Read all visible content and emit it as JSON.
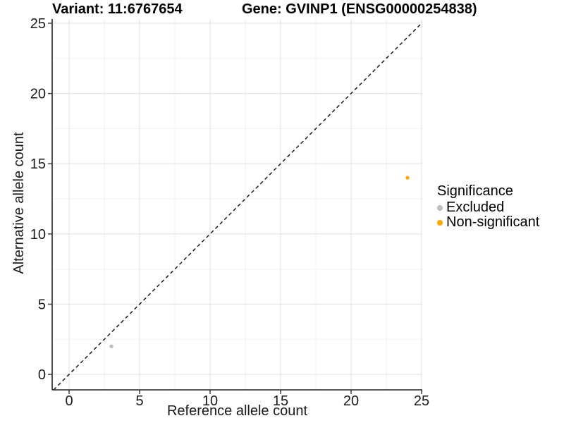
{
  "header": {
    "variant_title": "Variant: 11:6767654",
    "gene_title": "Gene: GVINP1 (ENSG00000254838)"
  },
  "legend": {
    "title": "Significance",
    "items": [
      {
        "label": "Excluded",
        "color": "#BDBDBD"
      },
      {
        "label": "Non-significant",
        "color": "#FFA500"
      }
    ]
  },
  "chart_data": {
    "type": "scatter",
    "title": "Variant: 11:6767654   Gene: GVINP1 (ENSG00000254838)",
    "xlabel": "Reference allele count",
    "ylabel": "Alternative allele count",
    "xlim": [
      -1.2,
      25.05
    ],
    "ylim": [
      -1.1,
      25.3
    ],
    "x_ticks": [
      0,
      5,
      10,
      15,
      20,
      25
    ],
    "y_ticks": [
      0,
      5,
      10,
      15,
      20,
      25
    ],
    "minor_ticks": [
      2.5,
      7.5,
      12.5,
      17.5,
      22.5
    ],
    "grid": true,
    "legend_position": "right",
    "identity_line": {
      "slope": 1,
      "intercept": 0,
      "style": "dashed",
      "color": "#1a1a1a"
    },
    "series": [
      {
        "name": "Excluded",
        "color": "#BDBDBD",
        "points": [
          [
            3,
            2
          ]
        ]
      },
      {
        "name": "Non-significant",
        "color": "#FFA500",
        "points": [
          [
            24,
            14
          ]
        ]
      }
    ],
    "colors": {
      "grid_major": "#E3E3E3",
      "grid_minor": "#F2F2F2",
      "spine": "#222222",
      "tick": "#333333",
      "tick_label": "#1a1a1a"
    }
  }
}
